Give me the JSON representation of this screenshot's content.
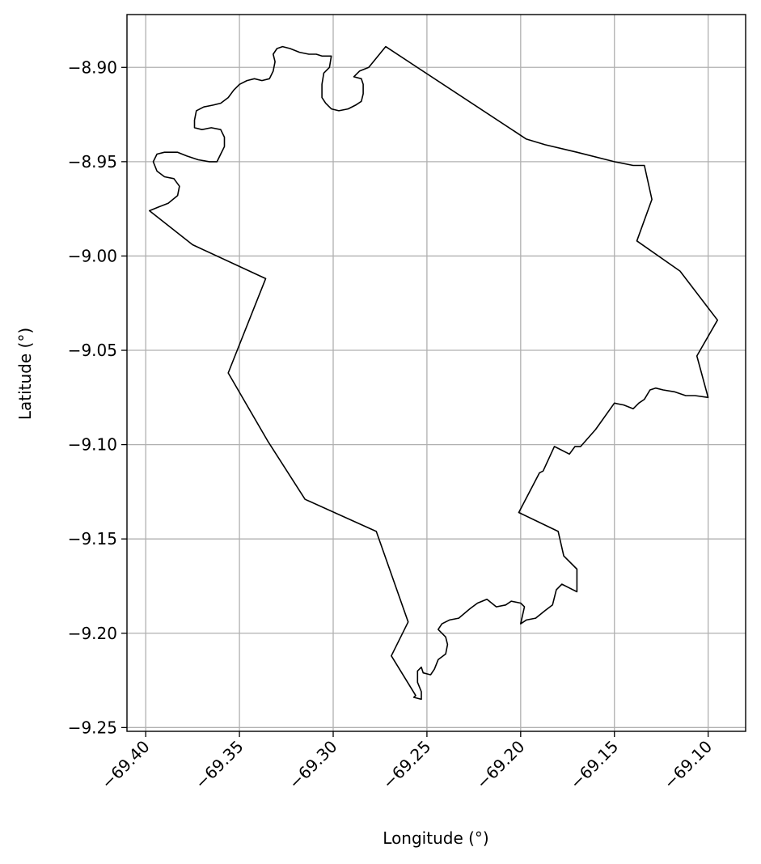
{
  "chart_data": {
    "type": "map-outline",
    "title": "",
    "xlabel": "Longitude (°)",
    "ylabel": "Latitude (°)",
    "xlim": [
      -69.41,
      -69.08
    ],
    "ylim": [
      -9.252,
      -8.872
    ],
    "x_ticks": [
      -69.4,
      -69.35,
      -69.3,
      -69.25,
      -69.2,
      -69.15,
      -69.1
    ],
    "y_ticks": [
      -8.9,
      -8.95,
      -9.0,
      -9.05,
      -9.1,
      -9.15,
      -9.2,
      -9.25
    ],
    "x_tick_labels": [
      "−69.40",
      "−69.35",
      "−69.30",
      "−69.25",
      "−69.20",
      "−69.15",
      "−69.10"
    ],
    "y_tick_labels": [
      "−8.90",
      "−8.95",
      "−9.00",
      "−9.05",
      "−9.10",
      "−9.15",
      "−9.20",
      "−9.25"
    ],
    "grid": true,
    "line_color": "#000000",
    "grid_color": "#b0b0b0",
    "boundary": [
      [
        -69.272,
        -8.889
      ],
      [
        -69.197,
        -8.938
      ],
      [
        -69.187,
        -8.941
      ],
      [
        -69.17,
        -8.945
      ],
      [
        -69.15,
        -8.95
      ],
      [
        -69.14,
        -8.952
      ],
      [
        -69.134,
        -8.952
      ],
      [
        -69.13,
        -8.97
      ],
      [
        -69.138,
        -8.992
      ],
      [
        -69.115,
        -9.008
      ],
      [
        -69.095,
        -9.034
      ],
      [
        -69.106,
        -9.053
      ],
      [
        -69.1,
        -9.075
      ],
      [
        -69.107,
        -9.074
      ],
      [
        -69.112,
        -9.074
      ],
      [
        -69.118,
        -9.072
      ],
      [
        -69.124,
        -9.071
      ],
      [
        -69.128,
        -9.07
      ],
      [
        -69.131,
        -9.071
      ],
      [
        -69.134,
        -9.076
      ],
      [
        -69.137,
        -9.078
      ],
      [
        -69.14,
        -9.081
      ],
      [
        -69.145,
        -9.079
      ],
      [
        -69.15,
        -9.078
      ],
      [
        -69.16,
        -9.092
      ],
      [
        -69.168,
        -9.101
      ],
      [
        -69.171,
        -9.101
      ],
      [
        -69.174,
        -9.105
      ],
      [
        -69.182,
        -9.101
      ],
      [
        -69.188,
        -9.114
      ],
      [
        -69.19,
        -9.115
      ],
      [
        -69.201,
        -9.136
      ],
      [
        -69.18,
        -9.146
      ],
      [
        -69.177,
        -9.159
      ],
      [
        -69.17,
        -9.166
      ],
      [
        -69.17,
        -9.178
      ],
      [
        -69.174,
        -9.176
      ],
      [
        -69.178,
        -9.174
      ],
      [
        -69.181,
        -9.177
      ],
      [
        -69.183,
        -9.185
      ],
      [
        -69.187,
        -9.188
      ],
      [
        -69.192,
        -9.192
      ],
      [
        -69.197,
        -9.193
      ],
      [
        -69.2,
        -9.195
      ],
      [
        -69.198,
        -9.186
      ],
      [
        -69.2,
        -9.184
      ],
      [
        -69.205,
        -9.183
      ],
      [
        -69.208,
        -9.185
      ],
      [
        -69.213,
        -9.186
      ],
      [
        -69.218,
        -9.182
      ],
      [
        -69.223,
        -9.184
      ],
      [
        -69.227,
        -9.187
      ],
      [
        -69.233,
        -9.192
      ],
      [
        -69.238,
        -9.193
      ],
      [
        -69.242,
        -9.195
      ],
      [
        -69.244,
        -9.198
      ],
      [
        -69.24,
        -9.202
      ],
      [
        -69.239,
        -9.206
      ],
      [
        -69.24,
        -9.211
      ],
      [
        -69.244,
        -9.214
      ],
      [
        -69.246,
        -9.219
      ],
      [
        -69.248,
        -9.222
      ],
      [
        -69.252,
        -9.221
      ],
      [
        -69.253,
        -9.218
      ],
      [
        -69.255,
        -9.22
      ],
      [
        -69.255,
        -9.226
      ],
      [
        -69.253,
        -9.231
      ],
      [
        -69.253,
        -9.235
      ],
      [
        -69.257,
        -9.234
      ],
      [
        -69.256,
        -9.233
      ],
      [
        -69.269,
        -9.212
      ],
      [
        -69.26,
        -9.194
      ],
      [
        -69.277,
        -9.146
      ],
      [
        -69.315,
        -9.129
      ],
      [
        -69.335,
        -9.098
      ],
      [
        -69.356,
        -9.062
      ],
      [
        -69.336,
        -9.012
      ],
      [
        -69.375,
        -8.994
      ],
      [
        -69.398,
        -8.976
      ],
      [
        -69.393,
        -8.974
      ],
      [
        -69.388,
        -8.972
      ],
      [
        -69.383,
        -8.968
      ],
      [
        -69.382,
        -8.963
      ],
      [
        -69.385,
        -8.959
      ],
      [
        -69.39,
        -8.958
      ],
      [
        -69.394,
        -8.955
      ],
      [
        -69.396,
        -8.95
      ],
      [
        -69.394,
        -8.946
      ],
      [
        -69.39,
        -8.945
      ],
      [
        -69.383,
        -8.945
      ],
      [
        -69.378,
        -8.947
      ],
      [
        -69.372,
        -8.949
      ],
      [
        -69.366,
        -8.95
      ],
      [
        -69.362,
        -8.95
      ],
      [
        -69.36,
        -8.946
      ],
      [
        -69.358,
        -8.942
      ],
      [
        -69.358,
        -8.937
      ],
      [
        -69.36,
        -8.933
      ],
      [
        -69.365,
        -8.932
      ],
      [
        -69.37,
        -8.933
      ],
      [
        -69.374,
        -8.932
      ],
      [
        -69.374,
        -8.928
      ],
      [
        -69.373,
        -8.923
      ],
      [
        -69.369,
        -8.921
      ],
      [
        -69.364,
        -8.92
      ],
      [
        -69.36,
        -8.919
      ],
      [
        -69.356,
        -8.916
      ],
      [
        -69.353,
        -8.912
      ],
      [
        -69.35,
        -8.909
      ],
      [
        -69.346,
        -8.907
      ],
      [
        -69.342,
        -8.906
      ],
      [
        -69.338,
        -8.907
      ],
      [
        -69.334,
        -8.906
      ],
      [
        -69.332,
        -8.902
      ],
      [
        -69.331,
        -8.897
      ],
      [
        -69.332,
        -8.893
      ],
      [
        -69.33,
        -8.89
      ],
      [
        -69.327,
        -8.889
      ],
      [
        -69.323,
        -8.89
      ],
      [
        -69.318,
        -8.892
      ],
      [
        -69.313,
        -8.893
      ],
      [
        -69.309,
        -8.893
      ],
      [
        -69.306,
        -8.894
      ],
      [
        -69.301,
        -8.894
      ],
      [
        -69.302,
        -8.9
      ],
      [
        -69.305,
        -8.903
      ],
      [
        -69.306,
        -8.909
      ],
      [
        -69.306,
        -8.916
      ],
      [
        -69.304,
        -8.919
      ],
      [
        -69.301,
        -8.922
      ],
      [
        -69.297,
        -8.923
      ],
      [
        -69.292,
        -8.922
      ],
      [
        -69.288,
        -8.92
      ],
      [
        -69.285,
        -8.918
      ],
      [
        -69.284,
        -8.914
      ],
      [
        -69.284,
        -8.909
      ],
      [
        -69.285,
        -8.906
      ],
      [
        -69.289,
        -8.905
      ],
      [
        -69.286,
        -8.902
      ],
      [
        -69.281,
        -8.9
      ],
      [
        -69.272,
        -8.889
      ]
    ]
  }
}
